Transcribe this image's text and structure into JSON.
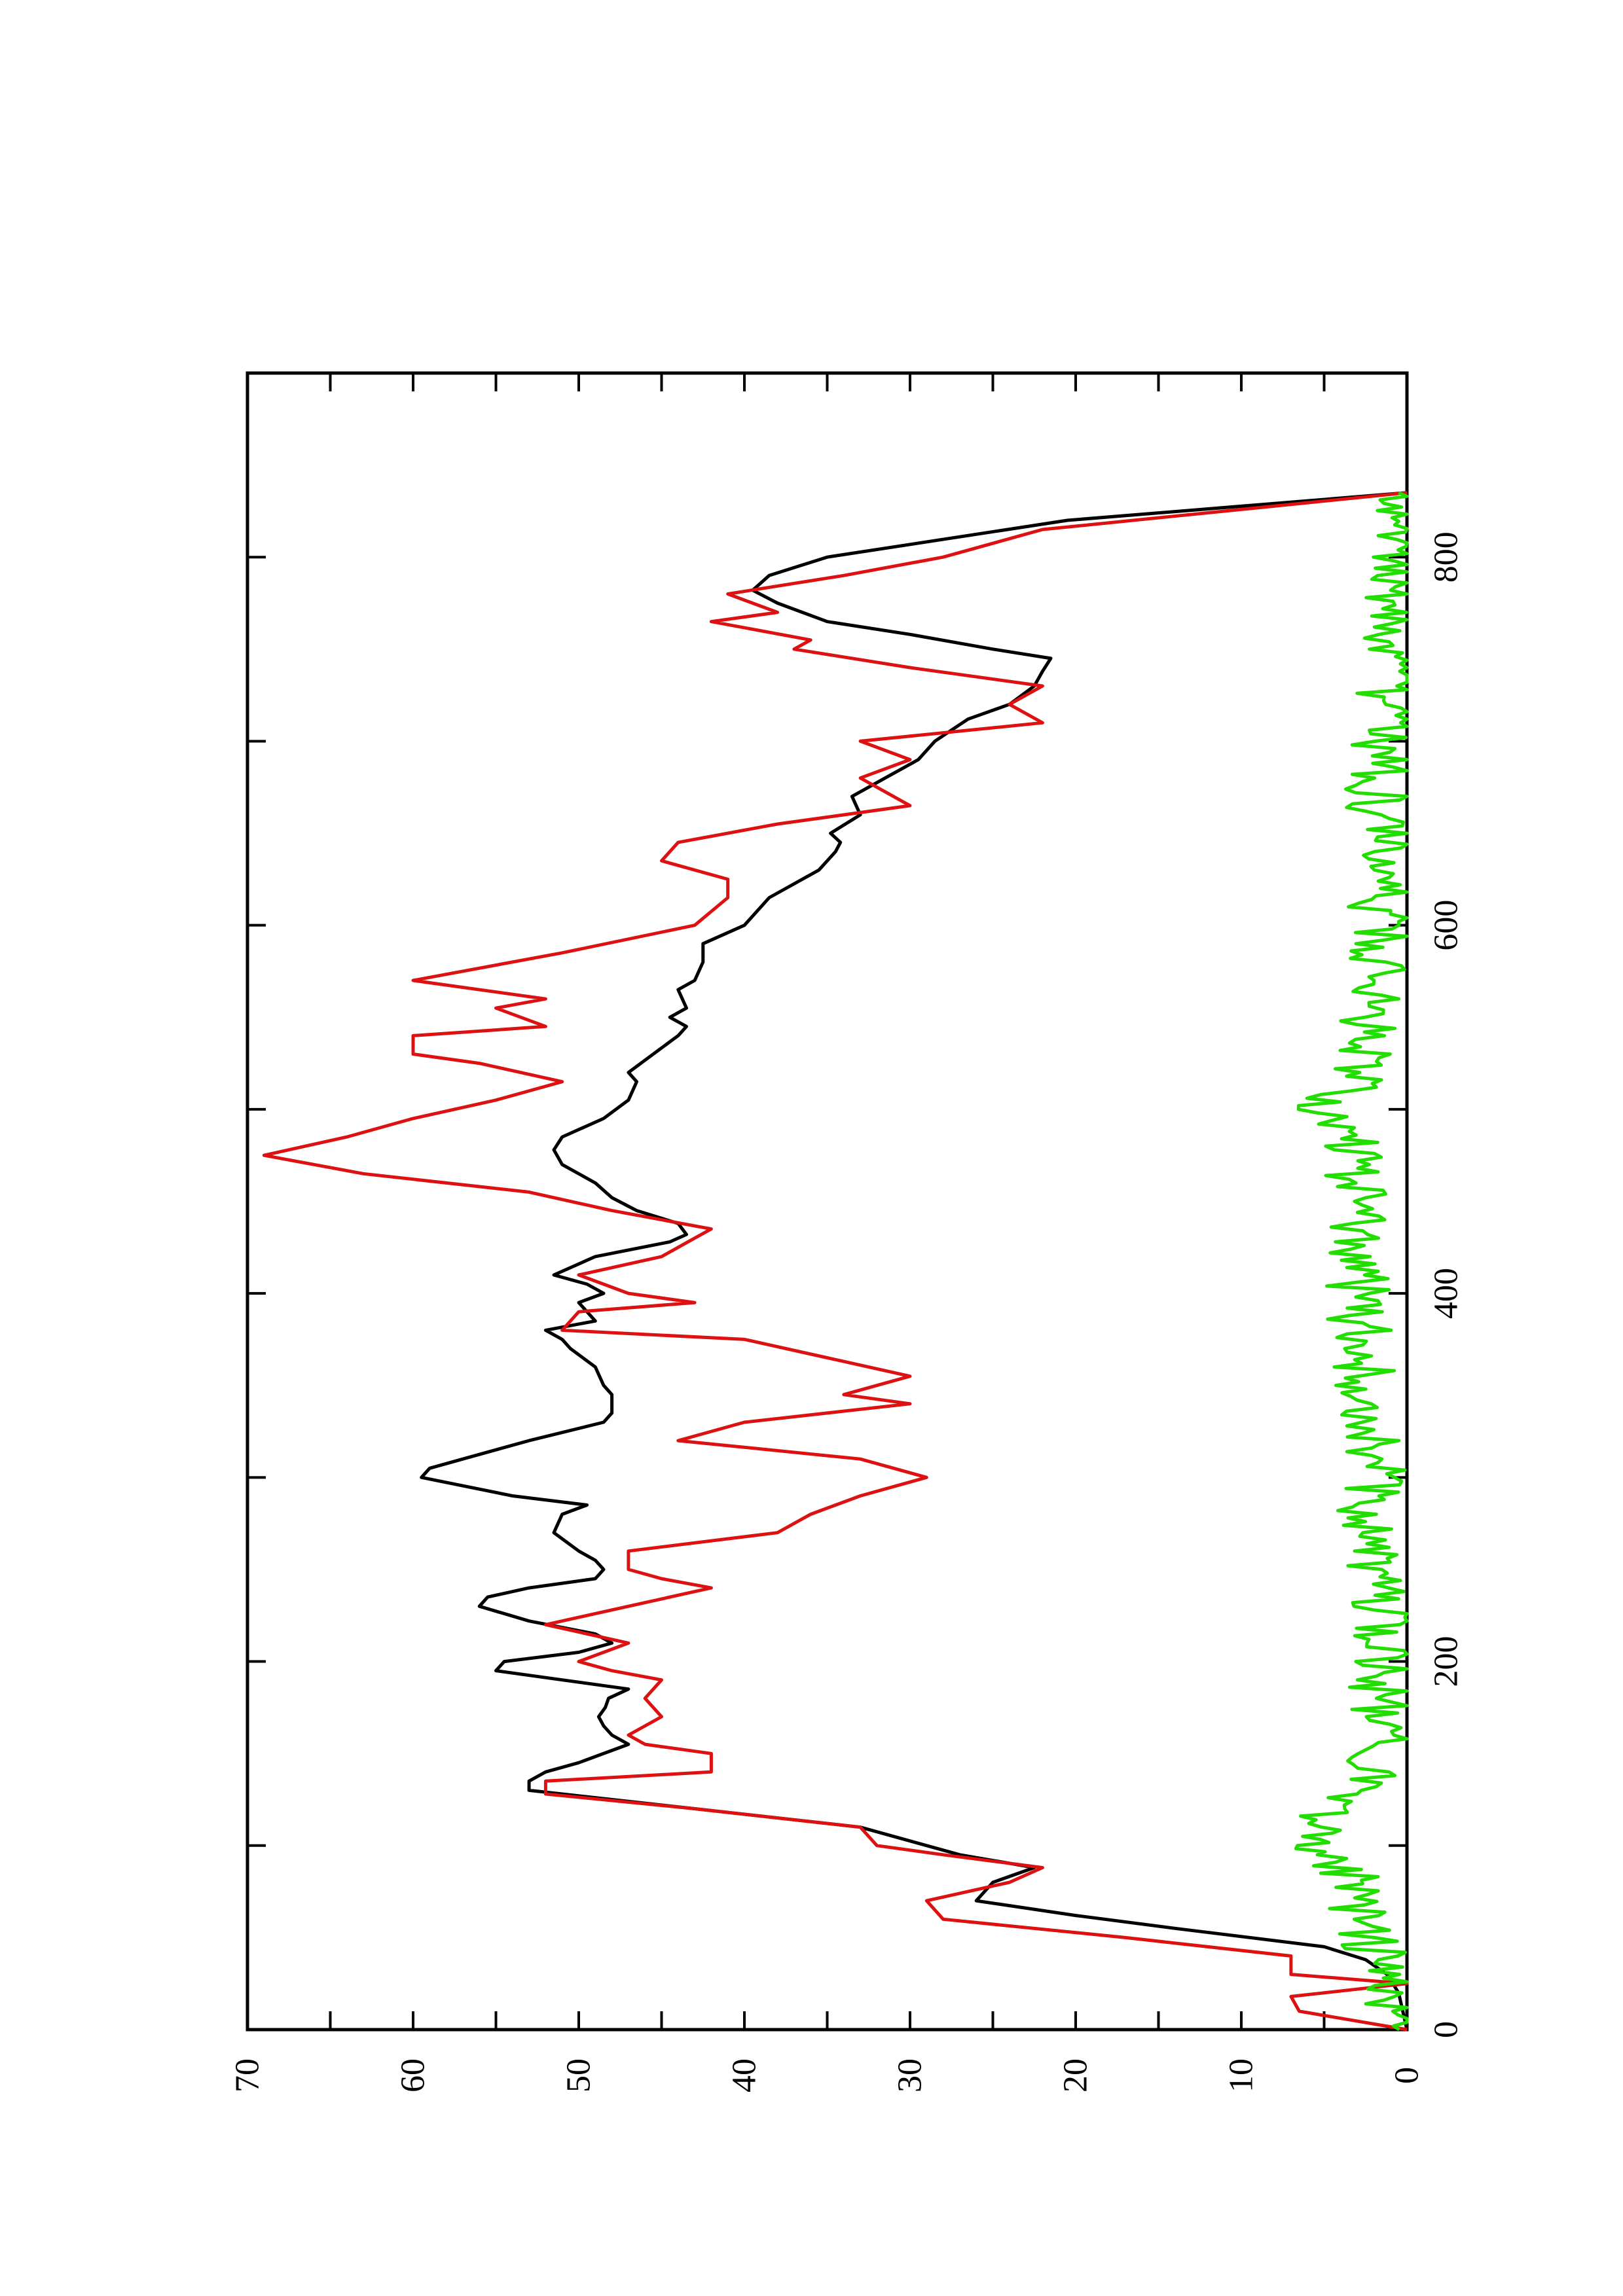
{
  "chart_data": {
    "type": "line",
    "orientation": "rotated-90-ccw",
    "title": "",
    "xlabel": "",
    "ylabel": "",
    "xlim": [
      0,
      900
    ],
    "ylim": [
      0,
      70
    ],
    "x_ticks": [
      0,
      200,
      400,
      600,
      800
    ],
    "x_tick_labels": [
      "0",
      "200",
      "400",
      "600",
      "800"
    ],
    "y_ticks": [
      0,
      10,
      20,
      30,
      40,
      50,
      60,
      70
    ],
    "y_tick_labels": [
      "0",
      "10",
      "20",
      "30",
      "40",
      "50",
      "60",
      "70"
    ],
    "grid": false,
    "legend": "none",
    "series": [
      {
        "color": "#000000",
        "x": [
          0,
          20,
          30,
          38,
          45,
          55,
          62,
          70,
          80,
          88,
          95,
          100,
          110,
          120,
          130,
          135,
          140,
          145,
          155,
          160,
          165,
          170,
          175,
          180,
          185,
          190,
          195,
          200,
          205,
          210,
          215,
          222,
          230,
          235,
          240,
          245,
          250,
          255,
          260,
          270,
          280,
          285,
          290,
          300,
          305,
          310,
          320,
          330,
          335,
          345,
          350,
          360,
          370,
          375,
          380,
          385,
          395,
          400,
          405,
          410,
          420,
          428,
          432,
          438,
          445,
          452,
          460,
          470,
          478,
          485,
          495,
          505,
          515,
          520,
          530,
          540,
          545,
          550,
          555,
          565,
          570,
          580,
          590,
          600,
          615,
          630,
          640,
          645,
          650,
          660,
          670,
          680,
          690,
          700,
          712,
          720,
          730,
          738,
          745,
          750,
          758,
          765,
          775,
          782,
          790,
          800,
          820,
          835
        ],
        "y": [
          0,
          0.5,
          1.2,
          2.5,
          5,
          14,
          20,
          26,
          25,
          22.5,
          27,
          29,
          33,
          43,
          53,
          53,
          52,
          50,
          47,
          48,
          48.5,
          48.8,
          48.4,
          48.2,
          47,
          51,
          55,
          54.5,
          50,
          48,
          49,
          53,
          56,
          55.5,
          53,
          49,
          48.5,
          49,
          50,
          51.5,
          51,
          49.5,
          54,
          59.5,
          59,
          57,
          53,
          48.5,
          48,
          48,
          48.5,
          49,
          50.5,
          51,
          52,
          49,
          50,
          48.5,
          49.5,
          51.5,
          49,
          44.5,
          43.5,
          44,
          46.5,
          48,
          49,
          51,
          51.5,
          51,
          48.5,
          47,
          46.5,
          47,
          45.5,
          44,
          43.5,
          44.5,
          43.5,
          44,
          43,
          42.5,
          42.5,
          40,
          38.5,
          35.5,
          34.5,
          34.2,
          34.8,
          33,
          33.5,
          31.5,
          29.5,
          28.5,
          26.5,
          24,
          22.5,
          22,
          21.5,
          25,
          30,
          35,
          38,
          39.5,
          38.5,
          35,
          20.5,
          0
        ]
      },
      {
        "color": "#dd1111",
        "x": [
          0,
          10,
          18,
          25,
          30,
          40,
          50,
          60,
          70,
          80,
          88,
          95,
          100,
          110,
          120,
          128,
          135,
          140,
          150,
          155,
          160,
          170,
          180,
          190,
          195,
          200,
          210,
          220,
          230,
          240,
          245,
          250,
          260,
          270,
          280,
          290,
          300,
          310,
          320,
          330,
          340,
          345,
          355,
          365,
          375,
          380,
          390,
          395,
          400,
          410,
          420,
          430,
          435,
          445,
          455,
          465,
          475,
          485,
          495,
          505,
          515,
          525,
          530,
          540,
          545,
          555,
          560,
          570,
          585,
          600,
          615,
          625,
          635,
          645,
          655,
          665,
          680,
          690,
          700,
          710,
          720,
          730,
          740,
          750,
          755,
          765,
          770,
          780,
          790,
          800,
          815,
          835
        ],
        "y": [
          0,
          6.5,
          7,
          0,
          7,
          7,
          17,
          28,
          29,
          24,
          22,
          28,
          32,
          33,
          43,
          52,
          52,
          42,
          42,
          46,
          47,
          45,
          46,
          45,
          48,
          50,
          47,
          52,
          47,
          42,
          45,
          47,
          47,
          38,
          36,
          33,
          29,
          33,
          44,
          40,
          30,
          34,
          30,
          35,
          40,
          51,
          50,
          43,
          47,
          50,
          45,
          43,
          42,
          48,
          53,
          63,
          69,
          64,
          60,
          55,
          51,
          56,
          60,
          60,
          52,
          55,
          52,
          60,
          51,
          43,
          41,
          41,
          45,
          44,
          38,
          30,
          33,
          30,
          33,
          22,
          24,
          22,
          30,
          37,
          36,
          42,
          38,
          41,
          34,
          28,
          22,
          0
        ]
      },
      {
        "color": "#22dd00",
        "noise_amplitude": 2,
        "x": [
          0,
          30,
          60,
          85,
          95,
          100,
          105,
          110,
          120,
          130,
          140,
          150,
          170,
          200,
          240,
          270,
          280,
          300,
          330,
          360,
          400,
          440,
          480,
          500,
          520,
          560,
          600,
          640,
          700,
          750,
          800,
          835
        ],
        "y": [
          0.5,
          1.5,
          2.5,
          3.5,
          5,
          6,
          6.5,
          5.5,
          4,
          3,
          2,
          1.5,
          1.5,
          1.5,
          2,
          3,
          2.5,
          2,
          2,
          2.5,
          3,
          3,
          3.5,
          5,
          2.5,
          2,
          1.5,
          2,
          1.5,
          1,
          1,
          0.5
        ]
      }
    ]
  }
}
